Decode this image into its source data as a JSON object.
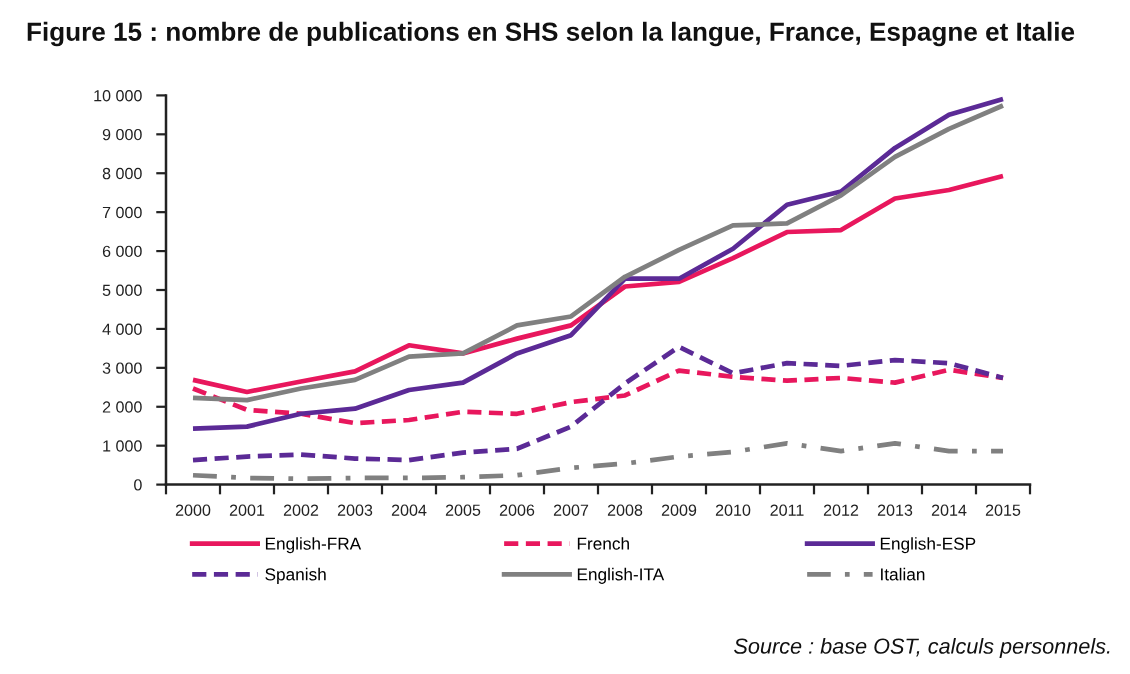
{
  "chart_data": {
    "type": "line",
    "title": "Figure 15 : nombre de publications en SHS selon la langue, France, Espagne et Italie",
    "categories": [
      "2000",
      "2001",
      "2002",
      "2003",
      "2004",
      "2005",
      "2006",
      "2007",
      "2008",
      "2009",
      "2010",
      "2011",
      "2012",
      "2013",
      "2014",
      "2015"
    ],
    "series": [
      {
        "name": "English-FRA",
        "color": "#e8175d",
        "line_style": "solid",
        "values": [
          2690,
          2380,
          2650,
          2910,
          3580,
          3370,
          3750,
          4090,
          5090,
          5210,
          5820,
          6490,
          6540,
          7350,
          7570,
          7930
        ]
      },
      {
        "name": "French",
        "color": "#e8175d",
        "line_style": "dashed",
        "values": [
          2470,
          1920,
          1820,
          1580,
          1660,
          1870,
          1820,
          2120,
          2290,
          2930,
          2770,
          2670,
          2740,
          2620,
          2950,
          2740
        ]
      },
      {
        "name": "English-ESP",
        "color": "#5b2a96",
        "line_style": "solid",
        "values": [
          1440,
          1490,
          1820,
          1950,
          2430,
          2620,
          3370,
          3840,
          5290,
          5290,
          6060,
          7190,
          7530,
          8650,
          9500,
          9910
        ]
      },
      {
        "name": "Spanish",
        "color": "#5b2a96",
        "line_style": "dashed",
        "values": [
          630,
          720,
          770,
          670,
          630,
          820,
          920,
          1490,
          2600,
          3540,
          2860,
          3120,
          3050,
          3200,
          3120,
          2740
        ]
      },
      {
        "name": "English-ITA",
        "color": "#808080",
        "line_style": "solid",
        "values": [
          2230,
          2170,
          2470,
          2690,
          3290,
          3370,
          4090,
          4320,
          5340,
          6030,
          6660,
          6710,
          7430,
          8420,
          9140,
          9740
        ]
      },
      {
        "name": "Italian",
        "color": "#808080",
        "line_style": "dashdot",
        "values": [
          240,
          170,
          150,
          170,
          170,
          190,
          240,
          430,
          540,
          720,
          840,
          1060,
          860,
          1060,
          860,
          860
        ]
      }
    ],
    "ylim": [
      0,
      10000
    ],
    "yticks": [
      0,
      {
        "value": 1000,
        "label": "1 000"
      },
      {
        "value": 2000,
        "label": "2 000"
      },
      {
        "value": 3000,
        "label": "3 000"
      },
      {
        "value": 4000,
        "label": "4 000"
      },
      {
        "value": 5000,
        "label": "5 000"
      },
      {
        "value": 6000,
        "label": "6 000"
      },
      {
        "value": 7000,
        "label": "7 000"
      },
      {
        "value": 8000,
        "label": "8 000"
      },
      {
        "value": 9000,
        "label": "9 000"
      },
      {
        "value": 10000,
        "label": "10 000"
      }
    ],
    "grid": false,
    "legend": "bottom",
    "marker": "none",
    "annotations": [
      "Source : base OST, calculs personnels."
    ]
  }
}
